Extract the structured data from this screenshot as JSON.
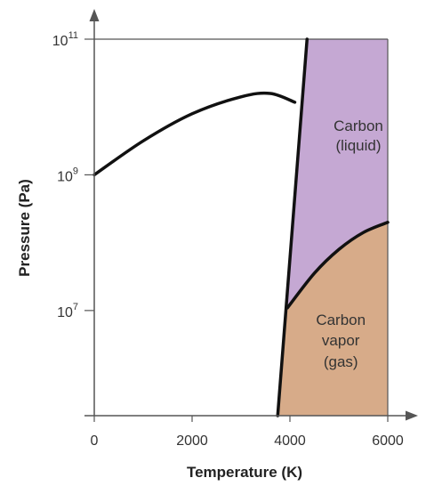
{
  "chart_data": {
    "type": "phase-diagram",
    "title": "",
    "xlabel": "Temperature (K)",
    "ylabel": "Pressure (Pa)",
    "xlim": [
      0,
      6000
    ],
    "y_scale": "log",
    "ylim_exponent": [
      5.45,
      11
    ],
    "x_ticks": [
      0,
      2000,
      4000,
      6000
    ],
    "x_tick_labels": [
      "0",
      "2000",
      "4000",
      "6000"
    ],
    "y_ticks": [
      {
        "exp": 7,
        "base": "10",
        "sup": "7"
      },
      {
        "exp": 9,
        "base": "10",
        "sup": "9"
      },
      {
        "exp": 11,
        "base": "10",
        "sup": "11"
      }
    ],
    "grid": false,
    "regions": [
      {
        "id": "liquid",
        "line1": "Carbon",
        "line2": "(liquid)",
        "line3": "",
        "color": "#c5a8d3"
      },
      {
        "id": "vapor",
        "line1": "Carbon",
        "line2": "vapor",
        "line3": "(gas)",
        "color": "#d7ab89"
      }
    ],
    "curves": [
      {
        "id": "solid-boundary",
        "points": [
          [
            0,
            9.0
          ],
          [
            1000,
            9.5
          ],
          [
            2000,
            9.9
          ],
          [
            3000,
            10.15
          ],
          [
            3600,
            10.2
          ],
          [
            4100,
            10.07
          ]
        ]
      },
      {
        "id": "melting-line",
        "points": [
          [
            3750,
            5.45
          ],
          [
            4350,
            11.0
          ]
        ]
      },
      {
        "id": "vaporization-curve",
        "points": [
          [
            3950,
            7.04
          ],
          [
            4500,
            7.55
          ],
          [
            5000,
            7.9
          ],
          [
            5500,
            8.15
          ],
          [
            6000,
            8.3
          ]
        ]
      }
    ],
    "colors": {
      "curve": "#111111",
      "axis": "#555555",
      "liquid": "#c5a8d3",
      "vapor": "#d7ab89"
    }
  }
}
